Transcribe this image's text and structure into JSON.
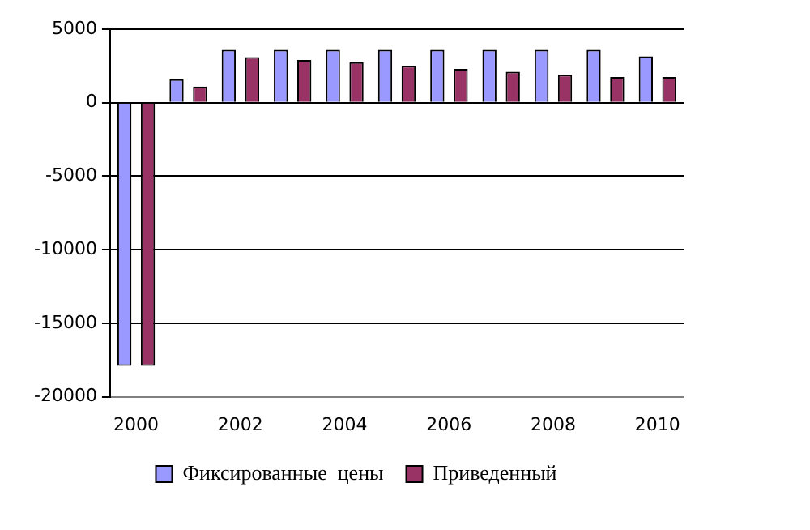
{
  "chart_data": {
    "type": "bar",
    "categories": [
      "2000",
      null,
      "2002",
      null,
      "2004",
      null,
      "2006",
      null,
      "2008",
      null,
      "2010"
    ],
    "series": [
      {
        "name": "Фиксированные  цены",
        "color": "#9999ff",
        "values": [
          -17900,
          1600,
          3600,
          3600,
          3600,
          3600,
          3600,
          3600,
          3600,
          3600,
          3150
        ]
      },
      {
        "name": "Приведенный",
        "color": "#993366",
        "values": [
          -17900,
          1100,
          3100,
          2900,
          2750,
          2500,
          2300,
          2100,
          1900,
          1750,
          1750
        ]
      }
    ],
    "ylim": [
      -20000,
      5000
    ],
    "yticks": [
      -20000,
      -15000,
      -10000,
      -5000,
      0,
      5000
    ],
    "grid": "y",
    "legend": "bottom"
  }
}
